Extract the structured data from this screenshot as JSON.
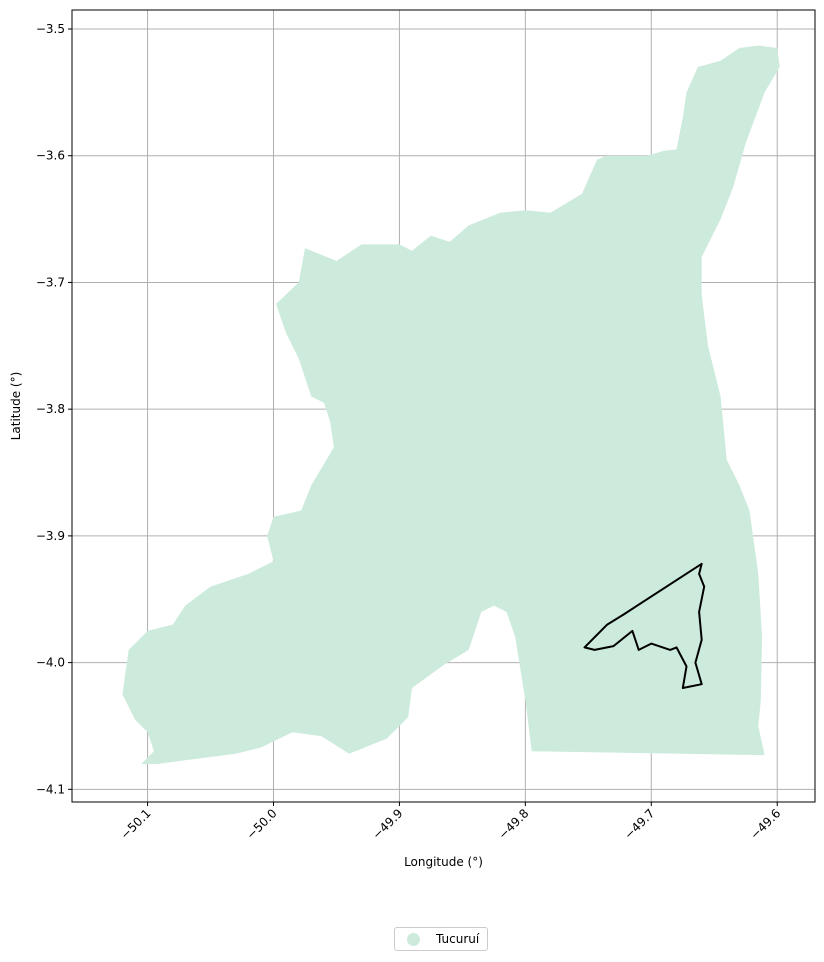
{
  "chart_data": {
    "type": "map",
    "xlabel": "Longitude (°)",
    "ylabel": "Latitude (°)",
    "xlim": [
      -50.16,
      -49.57
    ],
    "ylim": [
      -4.11,
      -3.485
    ],
    "x_ticks": [
      -50.1,
      -50.0,
      -49.9,
      -49.8,
      -49.7,
      -49.6
    ],
    "x_tick_labels": [
      "−50.1",
      "−50.0",
      "−49.9",
      "−49.8",
      "−49.7",
      "−49.6"
    ],
    "y_ticks": [
      -3.5,
      -3.6,
      -3.7,
      -3.8,
      -3.9,
      -4.0,
      -4.1
    ],
    "y_tick_labels": [
      "−3.5",
      "−3.6",
      "−3.7",
      "−3.8",
      "−3.9",
      "−4.0",
      "−4.1"
    ],
    "grid": true,
    "legend_placement": "bottom-center",
    "regions": [
      {
        "name": "Tucuruí",
        "color": "#cdebdc",
        "boundary_lonlat": [
          [
            -50.092,
            -4.08
          ],
          [
            -50.07,
            -4.077
          ],
          [
            -50.03,
            -4.072
          ],
          [
            -50.01,
            -4.067
          ],
          [
            -49.985,
            -4.055
          ],
          [
            -49.962,
            -4.058
          ],
          [
            -49.94,
            -4.072
          ],
          [
            -49.91,
            -4.06
          ],
          [
            -49.893,
            -4.043
          ],
          [
            -49.89,
            -4.02
          ],
          [
            -49.865,
            -4.002
          ],
          [
            -49.845,
            -3.99
          ],
          [
            -49.835,
            -3.96
          ],
          [
            -49.825,
            -3.955
          ],
          [
            -49.815,
            -3.96
          ],
          [
            -49.808,
            -3.98
          ],
          [
            -49.8,
            -4.03
          ],
          [
            -49.795,
            -4.07
          ],
          [
            -49.61,
            -4.073
          ],
          [
            -49.615,
            -4.05
          ],
          [
            -49.613,
            -4.03
          ],
          [
            -49.612,
            -3.98
          ],
          [
            -49.615,
            -3.93
          ],
          [
            -49.622,
            -3.88
          ],
          [
            -49.63,
            -3.86
          ],
          [
            -49.64,
            -3.84
          ],
          [
            -49.645,
            -3.79
          ],
          [
            -49.655,
            -3.75
          ],
          [
            -49.66,
            -3.71
          ],
          [
            -49.66,
            -3.68
          ],
          [
            -49.645,
            -3.65
          ],
          [
            -49.635,
            -3.625
          ],
          [
            -49.625,
            -3.59
          ],
          [
            -49.61,
            -3.55
          ],
          [
            -49.598,
            -3.53
          ],
          [
            -49.6,
            -3.515
          ],
          [
            -49.615,
            -3.513
          ],
          [
            -49.63,
            -3.515
          ],
          [
            -49.645,
            -3.525
          ],
          [
            -49.663,
            -3.53
          ],
          [
            -49.672,
            -3.55
          ],
          [
            -49.675,
            -3.57
          ],
          [
            -49.68,
            -3.595
          ],
          [
            -49.69,
            -3.596
          ],
          [
            -49.703,
            -3.6
          ],
          [
            -49.715,
            -3.6
          ],
          [
            -49.735,
            -3.6
          ],
          [
            -49.743,
            -3.603
          ],
          [
            -49.755,
            -3.63
          ],
          [
            -49.78,
            -3.645
          ],
          [
            -49.8,
            -3.643
          ],
          [
            -49.82,
            -3.645
          ],
          [
            -49.845,
            -3.655
          ],
          [
            -49.86,
            -3.668
          ],
          [
            -49.875,
            -3.663
          ],
          [
            -49.89,
            -3.675
          ],
          [
            -49.9,
            -3.67
          ],
          [
            -49.93,
            -3.67
          ],
          [
            -49.95,
            -3.683
          ],
          [
            -49.975,
            -3.673
          ],
          [
            -49.98,
            -3.7
          ],
          [
            -49.998,
            -3.717
          ],
          [
            -49.99,
            -3.74
          ],
          [
            -49.98,
            -3.76
          ],
          [
            -49.97,
            -3.79
          ],
          [
            -49.96,
            -3.795
          ],
          [
            -49.955,
            -3.81
          ],
          [
            -49.952,
            -3.83
          ],
          [
            -49.97,
            -3.86
          ],
          [
            -49.978,
            -3.88
          ],
          [
            -50.0,
            -3.885
          ],
          [
            -50.005,
            -3.9
          ],
          [
            -50.0,
            -3.92
          ],
          [
            -50.02,
            -3.93
          ],
          [
            -50.05,
            -3.94
          ],
          [
            -50.07,
            -3.955
          ],
          [
            -50.08,
            -3.97
          ],
          [
            -50.1,
            -3.975
          ],
          [
            -50.115,
            -3.99
          ],
          [
            -50.12,
            -4.025
          ],
          [
            -50.11,
            -4.045
          ],
          [
            -50.1,
            -4.055
          ],
          [
            -50.095,
            -4.07
          ],
          [
            -50.105,
            -4.08
          ]
        ]
      }
    ],
    "outlines": [
      {
        "color": "#000000",
        "boundary_lonlat": [
          [
            -49.753,
            -3.988
          ],
          [
            -49.735,
            -3.97
          ],
          [
            -49.722,
            -3.962
          ],
          [
            -49.66,
            -3.922
          ],
          [
            -49.662,
            -3.93
          ],
          [
            -49.658,
            -3.94
          ],
          [
            -49.662,
            -3.96
          ],
          [
            -49.66,
            -3.982
          ],
          [
            -49.665,
            -4.0
          ],
          [
            -49.66,
            -4.017
          ],
          [
            -49.675,
            -4.02
          ],
          [
            -49.672,
            -4.003
          ],
          [
            -49.68,
            -3.988
          ],
          [
            -49.685,
            -3.99
          ],
          [
            -49.7,
            -3.985
          ],
          [
            -49.71,
            -3.99
          ],
          [
            -49.715,
            -3.975
          ],
          [
            -49.73,
            -3.987
          ],
          [
            -49.745,
            -3.99
          ],
          [
            -49.753,
            -3.988
          ]
        ]
      }
    ]
  },
  "legend": {
    "entries": [
      {
        "label": "Tucuruí",
        "color": "#cdebdc"
      }
    ]
  }
}
